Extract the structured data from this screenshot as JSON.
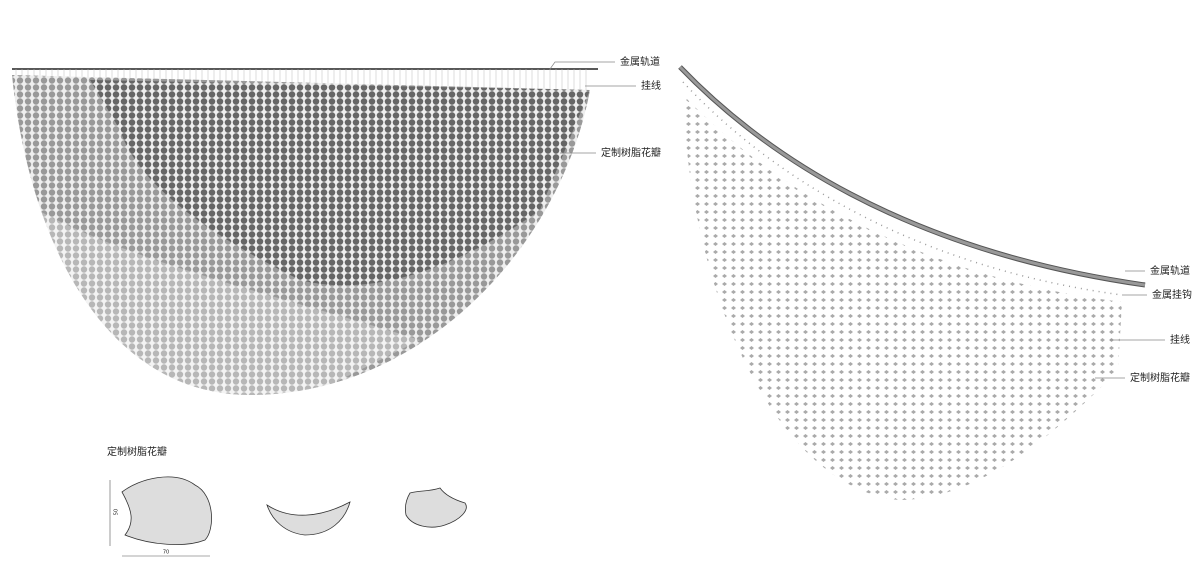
{
  "left_elevation": {
    "labels": [
      "金属轨道",
      "挂线",
      "定制树脂花瓣"
    ]
  },
  "right_view": {
    "labels": [
      "金属轨道",
      "金属挂钩",
      "挂线",
      "定制树脂花瓣"
    ]
  },
  "petal_detail": {
    "title": "定制树脂花瓣",
    "width_dim": "70",
    "height_dim": "50"
  }
}
